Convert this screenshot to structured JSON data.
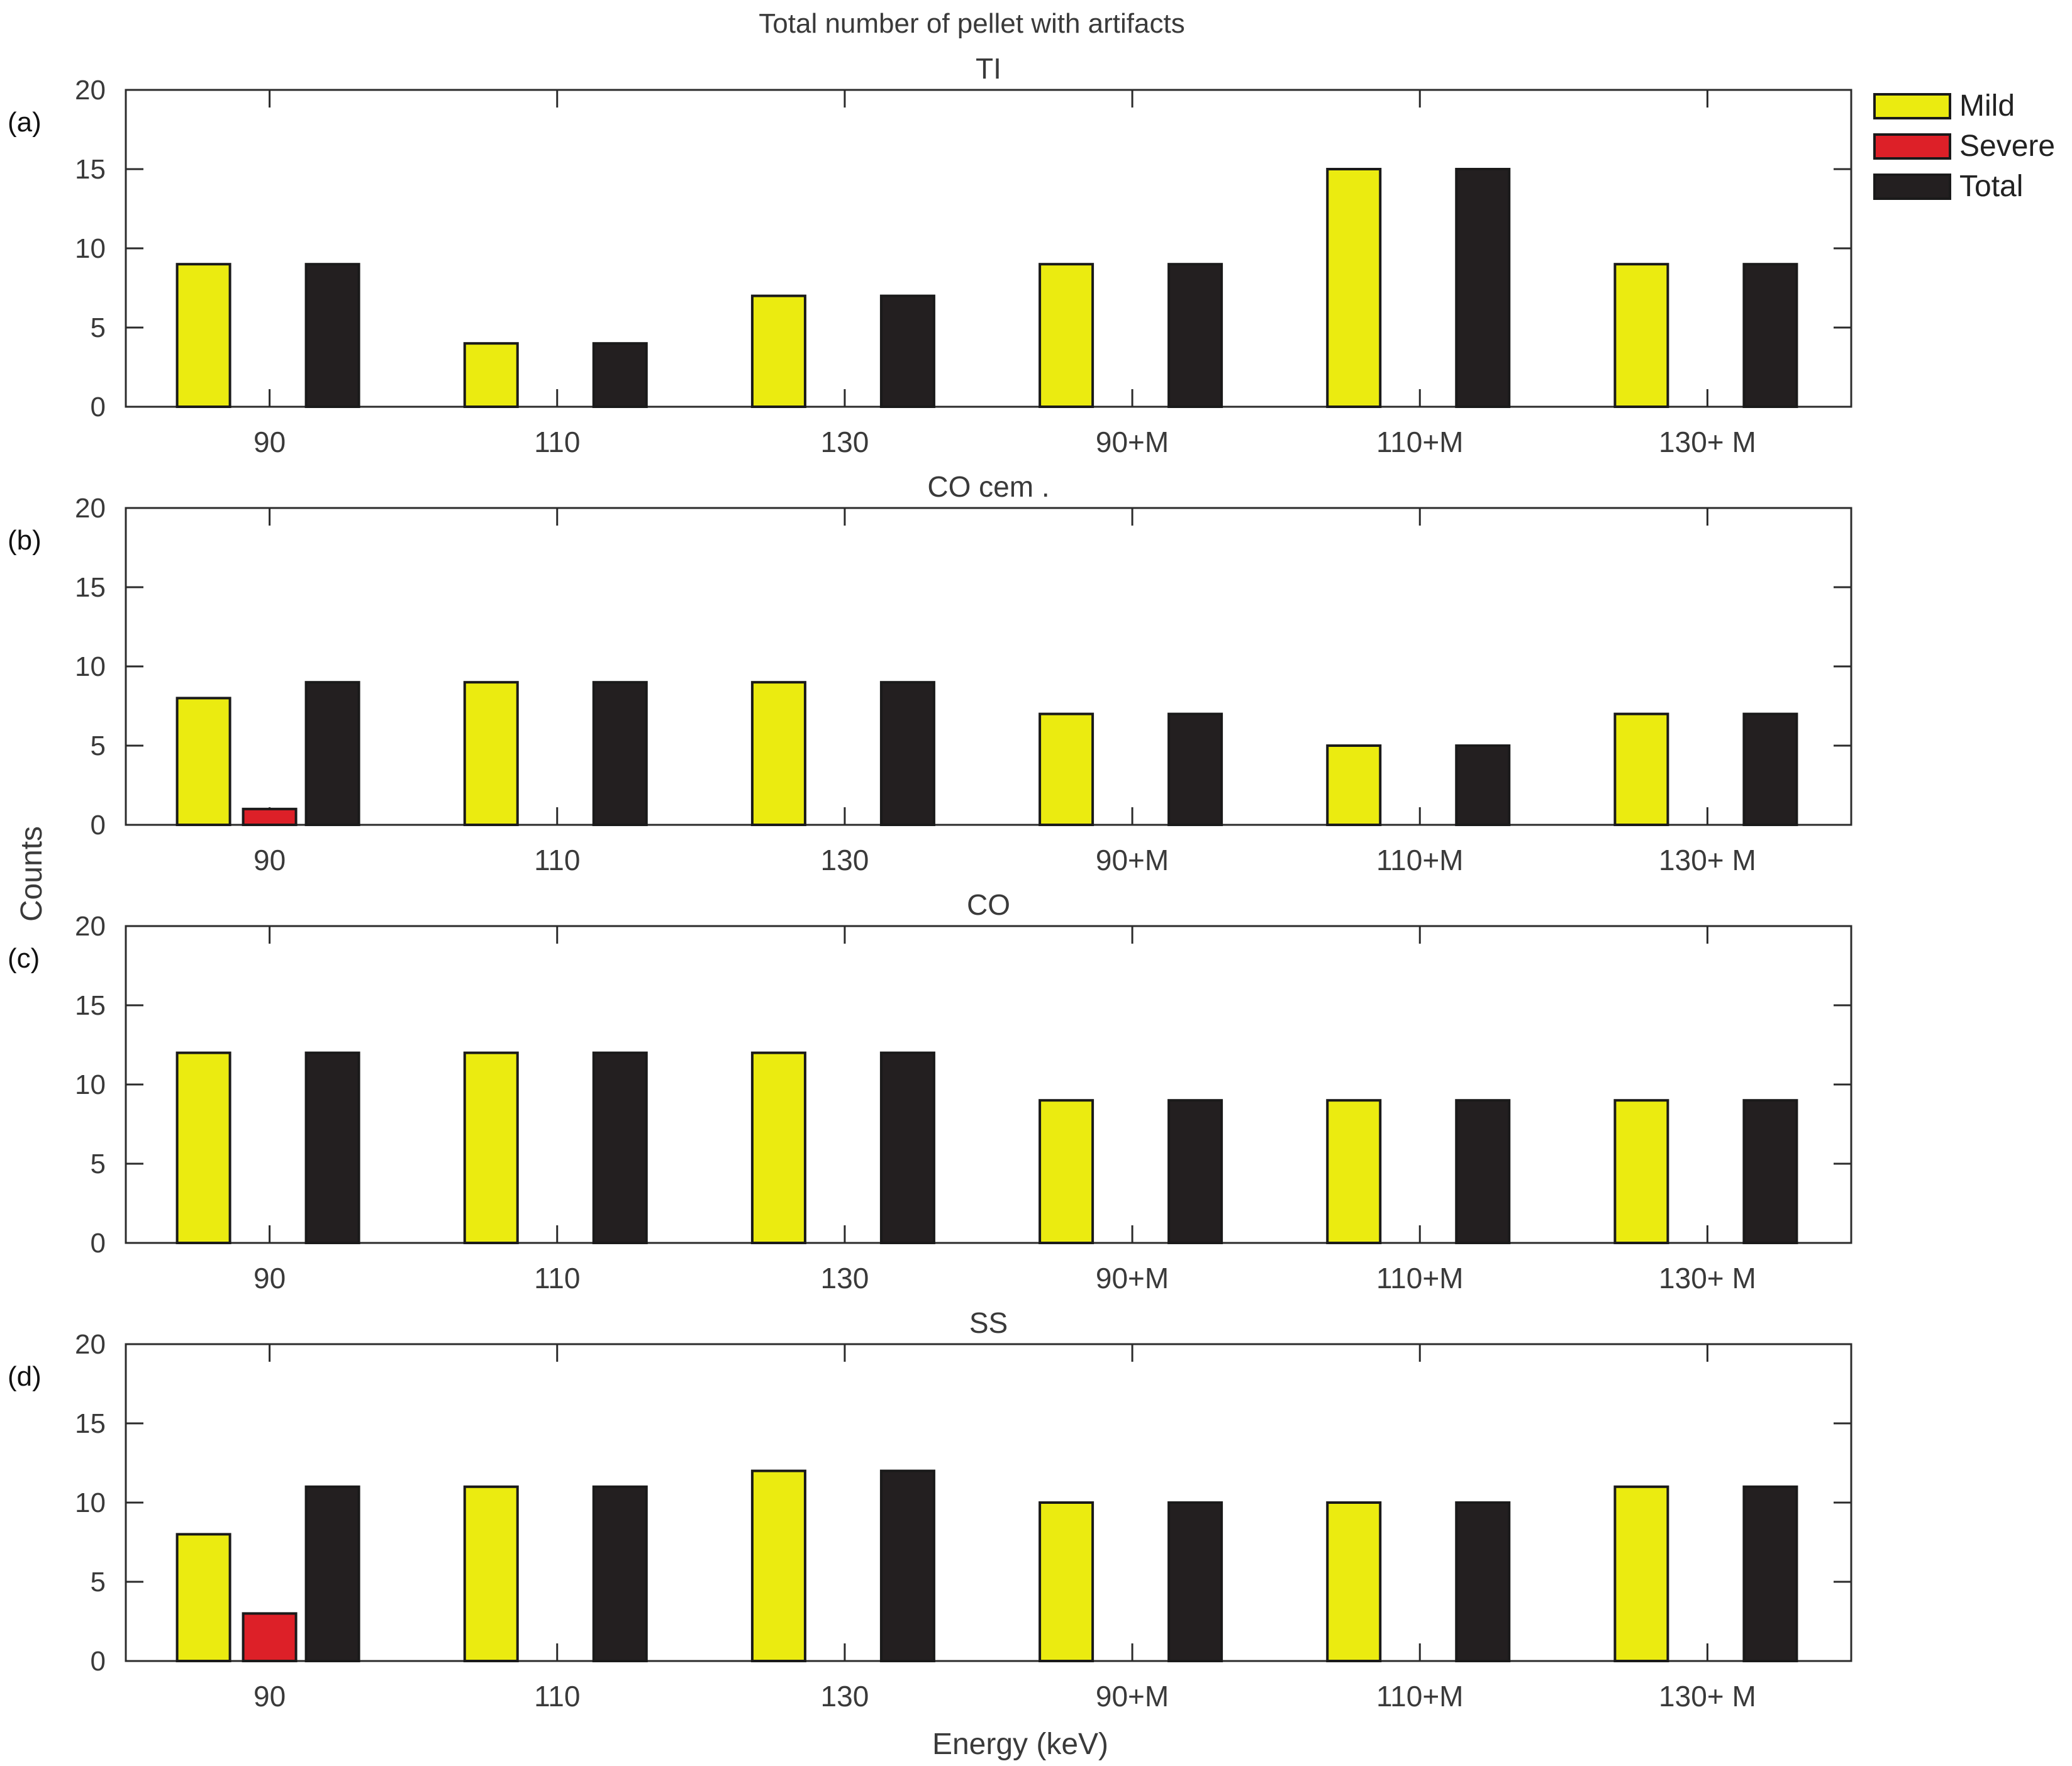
{
  "chart_data": {
    "type": "bar",
    "title": "Total number of pellet with artifacts",
    "xlabel": "Energy (keV)",
    "ylabel": "Counts",
    "ylim": [
      0,
      20
    ],
    "yticks": [
      0,
      5,
      10,
      15,
      20
    ],
    "categories": [
      "90",
      "110",
      "130",
      "90+M",
      "110+M",
      "130+ M"
    ],
    "legend": {
      "placement": "top-right-outside",
      "entries": [
        {
          "name": "Mild",
          "color": "#ebeb10"
        },
        {
          "name": "Severe",
          "color": "#dd2028"
        },
        {
          "name": "Total",
          "color": "#231f20"
        }
      ]
    },
    "panels": [
      {
        "letter": "(a)",
        "title": "TI",
        "series": [
          {
            "name": "Mild",
            "values": [
              9,
              4,
              7,
              9,
              15,
              9
            ]
          },
          {
            "name": "Severe",
            "values": [
              0,
              0,
              0,
              0,
              0,
              0
            ]
          },
          {
            "name": "Total",
            "values": [
              9,
              4,
              7,
              9,
              15,
              9
            ]
          }
        ]
      },
      {
        "letter": "(b)",
        "title": "CO cem   .",
        "series": [
          {
            "name": "Mild",
            "values": [
              8,
              9,
              9,
              7,
              5,
              7
            ]
          },
          {
            "name": "Severe",
            "values": [
              1,
              0,
              0,
              0,
              0,
              0
            ]
          },
          {
            "name": "Total",
            "values": [
              9,
              9,
              9,
              7,
              5,
              7
            ]
          }
        ]
      },
      {
        "letter": "(c)",
        "title": "CO",
        "series": [
          {
            "name": "Mild",
            "values": [
              12,
              12,
              12,
              9,
              9,
              9
            ]
          },
          {
            "name": "Severe",
            "values": [
              0,
              0,
              0,
              0,
              0,
              0
            ]
          },
          {
            "name": "Total",
            "values": [
              12,
              12,
              12,
              9,
              9,
              9
            ]
          }
        ]
      },
      {
        "letter": "(d)",
        "title": "SS",
        "series": [
          {
            "name": "Mild",
            "values": [
              8,
              11,
              12,
              10,
              10,
              11
            ]
          },
          {
            "name": "Severe",
            "values": [
              3,
              0,
              0,
              0,
              0,
              0
            ]
          },
          {
            "name": "Total",
            "values": [
              11,
              11,
              12,
              10,
              10,
              11
            ]
          }
        ]
      }
    ]
  }
}
